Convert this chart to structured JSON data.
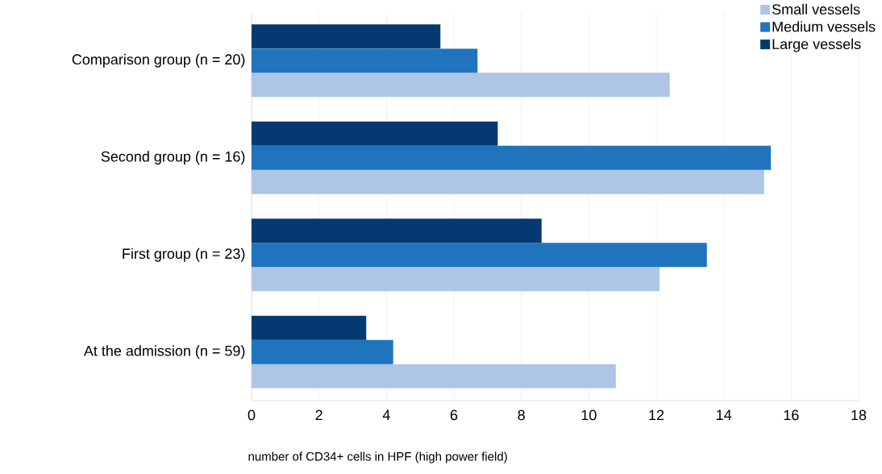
{
  "chart_data": {
    "type": "bar",
    "orientation": "horizontal",
    "xlabel": "number of CD34+ cells in HPF (high power field)",
    "categories": [
      "Comparison group (n = 20)",
      "Second group (n = 16)",
      "First group (n = 23)",
      "At the admission (n = 59)"
    ],
    "series": [
      {
        "name": "Small vessels",
        "color": "#aec5e6",
        "values": [
          12.4,
          15.2,
          12.1,
          10.8
        ]
      },
      {
        "name": "Medium vessels",
        "color": "#1f74bd",
        "values": [
          6.7,
          15.4,
          13.5,
          4.2
        ]
      },
      {
        "name": "Large vessels",
        "color": "#043a71",
        "values": [
          5.6,
          7.3,
          8.6,
          3.4
        ]
      }
    ],
    "xlim": [
      0,
      18
    ],
    "xticks": [
      0,
      2,
      4,
      6,
      8,
      10,
      12,
      14,
      16,
      18
    ],
    "grid": "x",
    "legend": "top right"
  }
}
